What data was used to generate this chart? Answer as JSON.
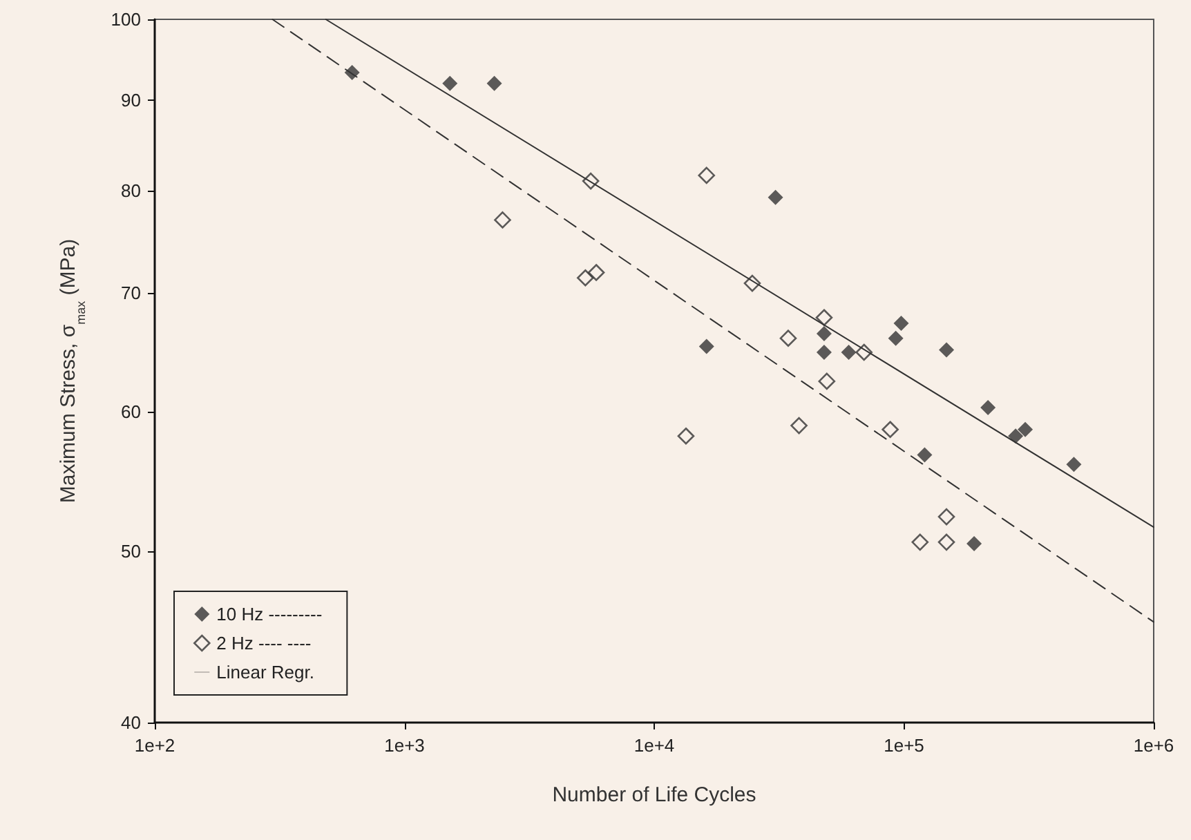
{
  "chart_data": {
    "type": "scatter",
    "xlabel": "Number of Life Cycles",
    "ylabel": "Maximum Stress, σ$_{max}$ (MPa)",
    "log": "xy",
    "xlim": [
      100,
      1000000
    ],
    "xticks": [
      {
        "value": 100,
        "label": "1e+2"
      },
      {
        "value": 1000,
        "label": "1e+3"
      },
      {
        "value": 10000,
        "label": "1e+4"
      },
      {
        "value": 100000,
        "label": "1e+5"
      },
      {
        "value": 1000000,
        "label": "1e+6"
      }
    ],
    "ylim": [
      40,
      100
    ],
    "yticks": [
      40,
      50,
      60,
      70,
      80,
      90,
      100
    ],
    "grid": false,
    "legend": "bottom left",
    "marker": "diamond",
    "series": [
      {
        "name": "10 Hz ---------",
        "color": "#333333",
        "x": [
          617,
          1520,
          2290,
          30600,
          16200,
          47900,
          97500,
          92700,
          47900,
          60100,
          148000,
          217000,
          280000,
          306000,
          121000,
          479000,
          191000
        ],
        "values": [
          93.3,
          92.0,
          92.0,
          79.3,
          65.3,
          66.4,
          67.3,
          66.0,
          64.8,
          64.8,
          65.0,
          60.3,
          58.1,
          58.6,
          56.7,
          56.0,
          50.5
        ]
      },
      {
        "name": "2 Hz ---- ----",
        "color": "#333333",
        "marker": "diamond-open",
        "x": [
          2470,
          5570,
          5300,
          5860,
          16200,
          24700,
          47900,
          34400,
          69200,
          49100,
          38000,
          13400,
          88100,
          148000,
          116000,
          148000
        ],
        "values": [
          77.0,
          81.0,
          71.4,
          71.9,
          81.6,
          70.9,
          67.8,
          66.0,
          64.8,
          62.4,
          58.9,
          58.1,
          58.6,
          52.3,
          50.6,
          50.6
        ]
      },
      {
        "name": "Linear Regr.",
        "type": "line",
        "color": "#333333",
        "line_style": "solid",
        "marker": "none",
        "x": [
          484,
          1000000
        ],
        "values": [
          100,
          51.6
        ]
      },
      {
        "type": "line",
        "color": "#333333",
        "line_style": "dashed",
        "marker": "none",
        "x": [
          296,
          1000000
        ],
        "values": [
          100,
          45.6
        ]
      }
    ]
  }
}
